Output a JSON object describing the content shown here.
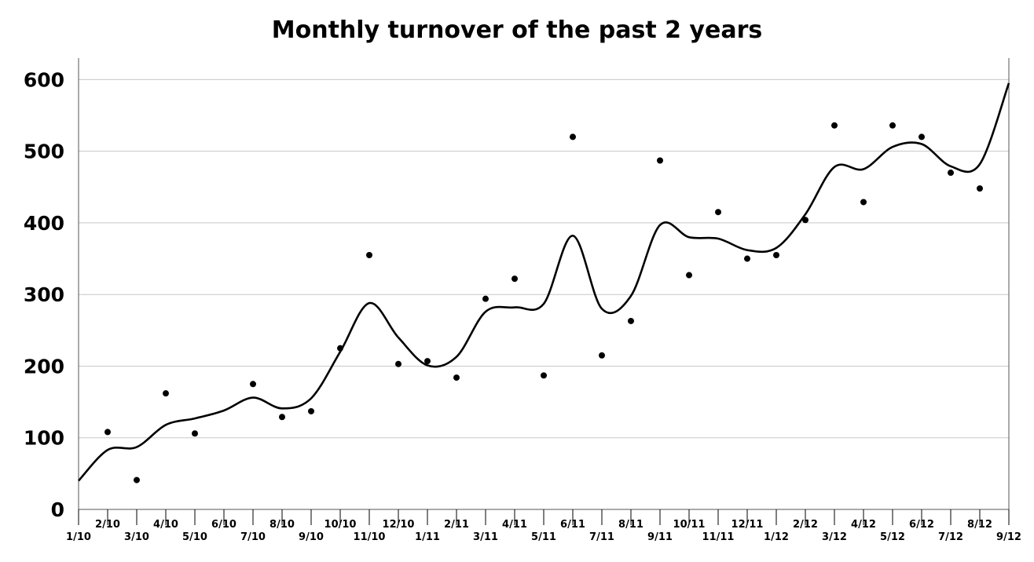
{
  "chart_data": {
    "type": "scatter",
    "title": "Monthly turnover of the past 2 years",
    "xlabel": "",
    "ylabel": "",
    "ylim": [
      0,
      630
    ],
    "y_ticks": [
      "0",
      "100",
      "200",
      "300",
      "400",
      "500",
      "600"
    ],
    "grid": "horizontal",
    "legend": "none",
    "categories": [
      "1/10",
      "2/10",
      "3/10",
      "4/10",
      "5/10",
      "6/10",
      "7/10",
      "8/10",
      "9/10",
      "10/10",
      "11/10",
      "12/10",
      "1/11",
      "2/11",
      "3/11",
      "4/11",
      "5/11",
      "6/11",
      "7/11",
      "8/11",
      "9/11",
      "10/11",
      "11/11",
      "12/11",
      "1/12",
      "2/12",
      "3/12",
      "4/12",
      "5/12",
      "6/12",
      "7/12",
      "8/12",
      "9/12"
    ],
    "series": [
      {
        "kind": "scatter",
        "values": [
          null,
          108,
          41,
          162,
          106,
          null,
          175,
          129,
          137,
          225,
          355,
          203,
          207,
          184,
          294,
          322,
          187,
          520,
          215,
          263,
          487,
          327,
          415,
          350,
          355,
          404,
          536,
          429,
          536,
          520,
          470,
          448,
          null
        ]
      },
      {
        "kind": "smooth-line",
        "values": [
          40,
          83,
          87,
          118,
          127,
          138,
          156,
          141,
          155,
          220,
          288,
          240,
          201,
          213,
          276,
          282,
          287,
          382,
          280,
          298,
          397,
          380,
          378,
          362,
          365,
          412,
          478,
          475,
          506,
          510,
          479,
          482,
          595
        ]
      }
    ],
    "colors": {
      "points": "#000000",
      "line": "#000000",
      "grid": "#c8c8c8",
      "axis": "#555555"
    }
  }
}
